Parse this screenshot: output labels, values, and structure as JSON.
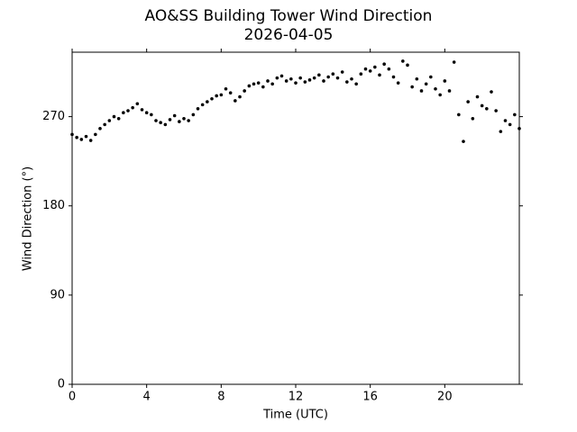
{
  "chart_data": {
    "type": "scatter",
    "title": "AO&SS Building Tower Wind Direction",
    "subtitle": "2026-04-05",
    "x_label": "Time (UTC)",
    "y_label": "Wind Direction (°)",
    "color": "#000000",
    "xlim": [
      0,
      24
    ],
    "ylim": [
      0,
      335
    ],
    "xticks": [
      0,
      4,
      8,
      12,
      16,
      20
    ],
    "yticks": [
      0,
      90,
      180,
      270
    ],
    "x": [
      0,
      0.25,
      0.5,
      0.75,
      1,
      1.25,
      1.5,
      1.75,
      2,
      2.25,
      2.5,
      2.75,
      3,
      3.25,
      3.5,
      3.75,
      4,
      4.25,
      4.5,
      4.75,
      5,
      5.25,
      5.5,
      5.75,
      6,
      6.25,
      6.5,
      6.75,
      7,
      7.25,
      7.5,
      7.75,
      8,
      8.25,
      8.5,
      8.75,
      9,
      9.25,
      9.5,
      9.75,
      10,
      10.25,
      10.5,
      10.75,
      11,
      11.25,
      11.5,
      11.75,
      12,
      12.25,
      12.5,
      12.75,
      13,
      13.25,
      13.5,
      13.75,
      14,
      14.25,
      14.5,
      14.75,
      15,
      15.25,
      15.5,
      15.75,
      16,
      16.25,
      16.5,
      16.75,
      17,
      17.25,
      17.5,
      17.75,
      18,
      18.25,
      18.5,
      18.75,
      19,
      19.25,
      19.5,
      19.75,
      20,
      20.25,
      20.5,
      20.75,
      21,
      21.25,
      21.5,
      21.75,
      22,
      22.25,
      22.5,
      22.75,
      23,
      23.25,
      23.5,
      23.75,
      24
    ],
    "values": [
      252,
      249,
      247,
      250,
      246,
      252,
      258,
      262,
      266,
      270,
      268,
      274,
      276,
      279,
      283,
      277,
      274,
      272,
      266,
      264,
      262,
      267,
      271,
      265,
      268,
      266,
      272,
      278,
      282,
      285,
      288,
      291,
      292,
      298,
      294,
      286,
      290,
      296,
      301,
      303,
      304,
      300,
      306,
      303,
      309,
      311,
      306,
      308,
      304,
      309,
      305,
      307,
      309,
      312,
      306,
      310,
      313,
      309,
      315,
      305,
      308,
      303,
      313,
      318,
      316,
      320,
      312,
      323,
      318,
      310,
      304,
      326,
      322,
      300,
      308,
      296,
      303,
      310,
      298,
      292,
      306,
      296,
      325,
      272,
      245,
      285,
      268,
      290,
      281,
      278,
      295,
      276,
      255,
      266,
      262,
      272,
      258
    ]
  }
}
